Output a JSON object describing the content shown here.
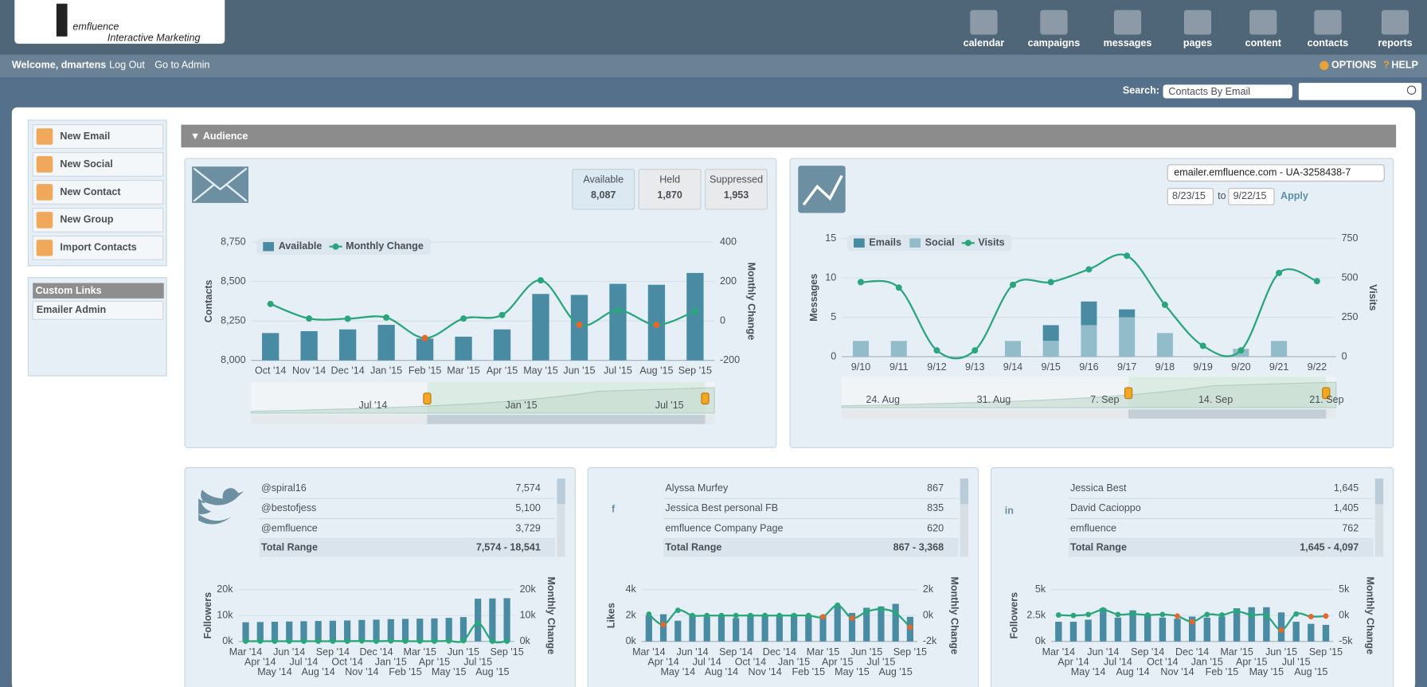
{
  "header": {
    "logo": "emfluence",
    "logo_tagline": "Interactive Marketing",
    "nav": [
      "calendar",
      "campaigns",
      "messages",
      "pages",
      "content",
      "contacts",
      "reports"
    ],
    "welcome": "Welcome, dmartens",
    "links": [
      "Log Out",
      "Go to Admin"
    ],
    "options": "OPTIONS",
    "help": "HELP",
    "search_label": "Search:",
    "search_select": "Contacts By Email"
  },
  "sidebar": {
    "buttons": [
      "New Email",
      "New Social",
      "New Contact",
      "New Group",
      "Import Contacts"
    ],
    "custom_links_title": "Custom Links",
    "custom_links": [
      "Emailer Admin"
    ]
  },
  "audience": {
    "title": "Audience",
    "stats": [
      {
        "label": "Available",
        "value": "8,087"
      },
      {
        "label": "Held",
        "value": "1,870"
      },
      {
        "label": "Suppressed",
        "value": "1,953"
      }
    ],
    "analytics_controls": {
      "property": "emailer.emfluence.com - UA-3258438-7",
      "start_date": "8/23/15",
      "to": "to",
      "end_date": "9/22/15",
      "apply": "Apply"
    },
    "social": [
      {
        "rows": [
          [
            "@spiral16",
            "7,574"
          ],
          [
            "@bestofjess",
            "5,100"
          ],
          [
            "@emfluence",
            "3,729"
          ]
        ],
        "total_label": "Total Range",
        "total": "7,574 - 18,541"
      },
      {
        "rows": [
          [
            "Alyssa Murfey",
            "867"
          ],
          [
            "Jessica Best personal FB",
            "835"
          ],
          [
            "emfluence Company Page",
            "620"
          ]
        ],
        "total_label": "Total Range",
        "total": "867 - 3,368"
      },
      {
        "rows": [
          [
            "Jessica Best",
            "1,645"
          ],
          [
            "David Cacioppo",
            "1,405"
          ],
          [
            "emfluence",
            "762"
          ]
        ],
        "total_label": "Total Range",
        "total": "1,645 - 4,097"
      }
    ]
  },
  "chart_data": [
    {
      "type": "bar",
      "categories": [
        "Oct '14",
        "Nov '14",
        "Dec '14",
        "Jan '15",
        "Feb '15",
        "Mar '15",
        "Apr '15",
        "May '15",
        "Jun '15",
        "Jul '15",
        "Aug '15",
        "Sep '15"
      ],
      "series": [
        {
          "name": "Available",
          "color": "#4a8ba4",
          "values": [
            8173,
            8185,
            8196,
            8225,
            8138,
            8150,
            8196,
            8421,
            8415,
            8485,
            8479,
            8554
          ]
        },
        {
          "name": "Monthly Change",
          "type": "line",
          "axis": "y2",
          "color": "#2aa57c",
          "negative_color": "#e5672e",
          "values": [
            86,
            12,
            11,
            17,
            -87,
            12,
            30,
            206,
            -20,
            54,
            -20,
            50
          ]
        }
      ],
      "ylim": [
        8000,
        8750
      ],
      "yticks": [
        {
          "value": 8000,
          "label": "8,000"
        },
        {
          "value": 8250,
          "label": "8,250"
        },
        {
          "value": 8500,
          "label": "8,500"
        },
        {
          "value": 8750,
          "label": "8,750"
        }
      ],
      "y2lim": [
        -200,
        400
      ],
      "y2ticks": [
        -200,
        0,
        200,
        400
      ],
      "ylabel": "Contacts",
      "y2label": "Monthly Change",
      "legend": "top-left",
      "grid": true,
      "navigator_labels": [
        "Jul '14",
        "Jan '15",
        "Jul '15"
      ]
    },
    {
      "type": "bar",
      "stacked": true,
      "categories": [
        "9/10",
        "9/11",
        "9/12",
        "9/13",
        "9/14",
        "9/15",
        "9/16",
        "9/17",
        "9/18",
        "9/19",
        "9/20",
        "9/21",
        "9/22"
      ],
      "series": [
        {
          "name": "Emails",
          "color": "#4a8ba4",
          "values": [
            0,
            0,
            0,
            0,
            0,
            2,
            3,
            1,
            0,
            0,
            0,
            0,
            0
          ]
        },
        {
          "name": "Social",
          "color": "#93bccb",
          "values": [
            2,
            2,
            0,
            0,
            2,
            2,
            4,
            5,
            3,
            0,
            1,
            2,
            0
          ]
        },
        {
          "name": "Visits",
          "type": "line",
          "axis": "y2",
          "color": "#2aa57c",
          "values": [
            473,
            438,
            40,
            40,
            456,
            473,
            554,
            640,
            329,
            69,
            40,
            531,
            479
          ]
        }
      ],
      "ylim": [
        0,
        15
      ],
      "yticks": [
        0,
        5,
        10,
        15
      ],
      "y2lim": [
        0,
        750
      ],
      "y2ticks": [
        0,
        250,
        500,
        750
      ],
      "ylabel": "Messages",
      "y2label": "Visits",
      "legend": "top-left",
      "grid": true,
      "navigator_labels": [
        "24. Aug",
        "31. Aug",
        "7. Sep",
        "14. Sep",
        "21. Sep"
      ]
    },
    {
      "type": "bar",
      "categories": [
        "Mar '14",
        "Apr '14",
        "May '14",
        "Jun '14",
        "Jul '14",
        "Aug '14",
        "Sep '14",
        "Oct '14",
        "Nov '14",
        "Dec '14",
        "Jan '15",
        "Feb '15",
        "Mar '15",
        "Apr '15",
        "May '15",
        "Jun '15",
        "Jul '15",
        "Aug '15",
        "Sep '15"
      ],
      "series": [
        {
          "color": "#4a8ba4",
          "values": [
            7400,
            7500,
            7600,
            7700,
            7800,
            7900,
            8000,
            8100,
            8300,
            8400,
            8600,
            8700,
            8800,
            8900,
            9100,
            9400,
            16500,
            16600,
            16700
          ]
        },
        {
          "type": "line",
          "axis": "y2",
          "color": "#2aa57c",
          "negative_color": "#e5672e",
          "values": [
            100,
            100,
            100,
            100,
            100,
            100,
            100,
            100,
            200,
            100,
            200,
            100,
            100,
            100,
            200,
            300,
            7100,
            100,
            100
          ]
        }
      ],
      "ylim": [
        0,
        20000
      ],
      "yticks": [
        {
          "value": 0,
          "label": "0k"
        },
        {
          "value": 10000,
          "label": "10k"
        },
        {
          "value": 20000,
          "label": "20k"
        }
      ],
      "y2lim": [
        0,
        20000
      ],
      "y2ticks": [
        {
          "value": 0,
          "label": "0k"
        },
        {
          "value": 10000,
          "label": "10k"
        },
        {
          "value": 20000,
          "label": "20k"
        }
      ],
      "ylabel": "Followers",
      "y2label": "Monthly Change",
      "grid": true
    },
    {
      "type": "bar",
      "categories": [
        "Mar '14",
        "Apr '14",
        "May '14",
        "Jun '14",
        "Jul '14",
        "Aug '14",
        "Sep '14",
        "Oct '14",
        "Nov '14",
        "Dec '14",
        "Jan '15",
        "Feb '15",
        "Mar '15",
        "Apr '15",
        "May '15",
        "Jun '15",
        "Jul '15",
        "Aug '15",
        "Sep '15"
      ],
      "series": [
        {
          "color": "#4a8ba4",
          "values": [
            2000,
            2100,
            1600,
            2000,
            1900,
            2000,
            1800,
            2100,
            2000,
            2000,
            2100,
            2000,
            2000,
            2800,
            2200,
            2600,
            2700,
            2900,
            1900
          ]
        },
        {
          "type": "line",
          "axis": "y2",
          "color": "#2aa57c",
          "negative_color": "#e5672e",
          "values": [
            100,
            -700,
            400,
            0,
            0,
            0,
            0,
            0,
            0,
            0,
            0,
            0,
            -100,
            800,
            -200,
            300,
            500,
            200,
            -900
          ]
        }
      ],
      "ylim": [
        0,
        4000
      ],
      "yticks": [
        {
          "value": 0,
          "label": "0k"
        },
        {
          "value": 2000,
          "label": "2k"
        },
        {
          "value": 4000,
          "label": "4k"
        }
      ],
      "y2lim": [
        -2000,
        2000
      ],
      "y2ticks": [
        {
          "value": -2000,
          "label": "-2k"
        },
        {
          "value": 0,
          "label": "0k"
        },
        {
          "value": 2000,
          "label": "2k"
        }
      ],
      "ylabel": "Likes",
      "y2label": "Monthly Change",
      "grid": true
    },
    {
      "type": "bar",
      "categories": [
        "Mar '14",
        "Apr '14",
        "May '14",
        "Jun '14",
        "Jul '14",
        "Aug '14",
        "Sep '14",
        "Oct '14",
        "Nov '14",
        "Dec '14",
        "Jan '15",
        "Feb '15",
        "Mar '15",
        "Apr '15",
        "May '15",
        "Jun '15",
        "Jul '15",
        "Aug '15",
        "Sep '15"
      ],
      "series": [
        {
          "color": "#4a8ba4",
          "values": [
            1900,
            1900,
            2100,
            3200,
            2300,
            3000,
            2500,
            2300,
            2200,
            2400,
            2300,
            2400,
            3200,
            3300,
            3300,
            2800,
            1900,
            1700,
            1600
          ]
        },
        {
          "type": "line",
          "axis": "y2",
          "color": "#2aa57c",
          "negative_color": "#e5672e",
          "values": [
            100,
            0,
            200,
            1100,
            200,
            300,
            100,
            200,
            -100,
            -1200,
            200,
            100,
            800,
            100,
            0,
            -2800,
            300,
            -200,
            -100
          ]
        }
      ],
      "ylim": [
        0,
        5000
      ],
      "yticks": [
        {
          "value": 0,
          "label": "0k"
        },
        {
          "value": 2500,
          "label": "2.5k"
        },
        {
          "value": 5000,
          "label": "5k"
        }
      ],
      "y2lim": [
        -5000,
        5000
      ],
      "y2ticks": [
        {
          "value": -5000,
          "label": "-5k"
        },
        {
          "value": 0,
          "label": "0k"
        },
        {
          "value": 5000,
          "label": "5k"
        }
      ],
      "ylabel": "Followers",
      "y2label": "Monthly Change",
      "grid": true
    }
  ]
}
